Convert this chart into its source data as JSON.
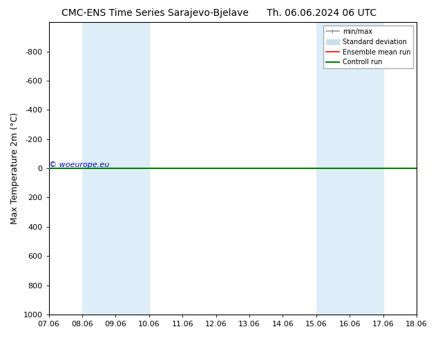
{
  "title_left": "CMC-ENS Time Series Sarajevo-Bjelave",
  "title_right": "Th. 06.06.2024 06 UTC",
  "ylabel": "Max Temperature 2m (°C)",
  "xlabel": "",
  "ylim_bottom": 1000,
  "ylim_top": -1000,
  "yticks": [
    -800,
    -600,
    -400,
    -200,
    0,
    200,
    400,
    600,
    800,
    1000
  ],
  "xlim": [
    0,
    11
  ],
  "xtick_labels": [
    "07.06",
    "08.06",
    "09.06",
    "10.06",
    "11.06",
    "12.06",
    "13.06",
    "14.06",
    "15.06",
    "16.06",
    "17.06",
    "18.06"
  ],
  "xtick_positions": [
    0,
    1,
    2,
    3,
    4,
    5,
    6,
    7,
    8,
    9,
    10,
    11
  ],
  "shaded_bands": [
    {
      "x_start": 1,
      "x_end": 2,
      "color": "#ddeef9"
    },
    {
      "x_start": 2,
      "x_end": 3,
      "color": "#ddeef9"
    },
    {
      "x_start": 8,
      "x_end": 9,
      "color": "#ddeef9"
    },
    {
      "x_start": 9,
      "x_end": 10,
      "color": "#ddeef9"
    }
  ],
  "green_line_y": 0,
  "red_line_y": 0,
  "watermark": "© woeurope.eu",
  "watermark_color": "#0000cc",
  "background_color": "#ffffff",
  "plot_bg_color": "#ffffff",
  "border_color": "#000000",
  "legend_items": [
    {
      "label": "min/max",
      "color": "#999999",
      "lw": 1.2
    },
    {
      "label": "Standard deviation",
      "color": "#c8dff0",
      "lw": 8
    },
    {
      "label": "Ensemble mean run",
      "color": "#ff0000",
      "lw": 1.2
    },
    {
      "label": "Controll run",
      "color": "#008000",
      "lw": 1.5
    }
  ],
  "font_size_title": 10,
  "font_size_axis": 9,
  "font_size_tick": 8,
  "font_size_legend": 7,
  "font_size_watermark": 8
}
